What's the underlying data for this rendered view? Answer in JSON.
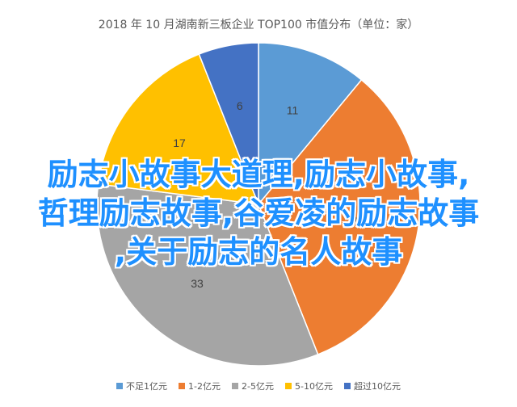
{
  "chart_data": {
    "type": "pie",
    "title": "2018 年 10 月湖南新三板企业 TOP100 市值分布（单位：家）",
    "categories": [
      "不足1亿元",
      "1-2亿元",
      "2-5亿元",
      "5-10亿元",
      "超过10亿元"
    ],
    "values": [
      11,
      33,
      33,
      17,
      6
    ],
    "colors": [
      "#5b9bd5",
      "#ed7d31",
      "#a5a5a5",
      "#ffc000",
      "#4472c4"
    ],
    "legend_position": "bottom"
  },
  "overlay": {
    "lines": [
      "励志小故事大道理,励志小故事,",
      "哲理励志故事,谷爱凌的励志故事",
      ",关于励志的名人故事"
    ]
  }
}
